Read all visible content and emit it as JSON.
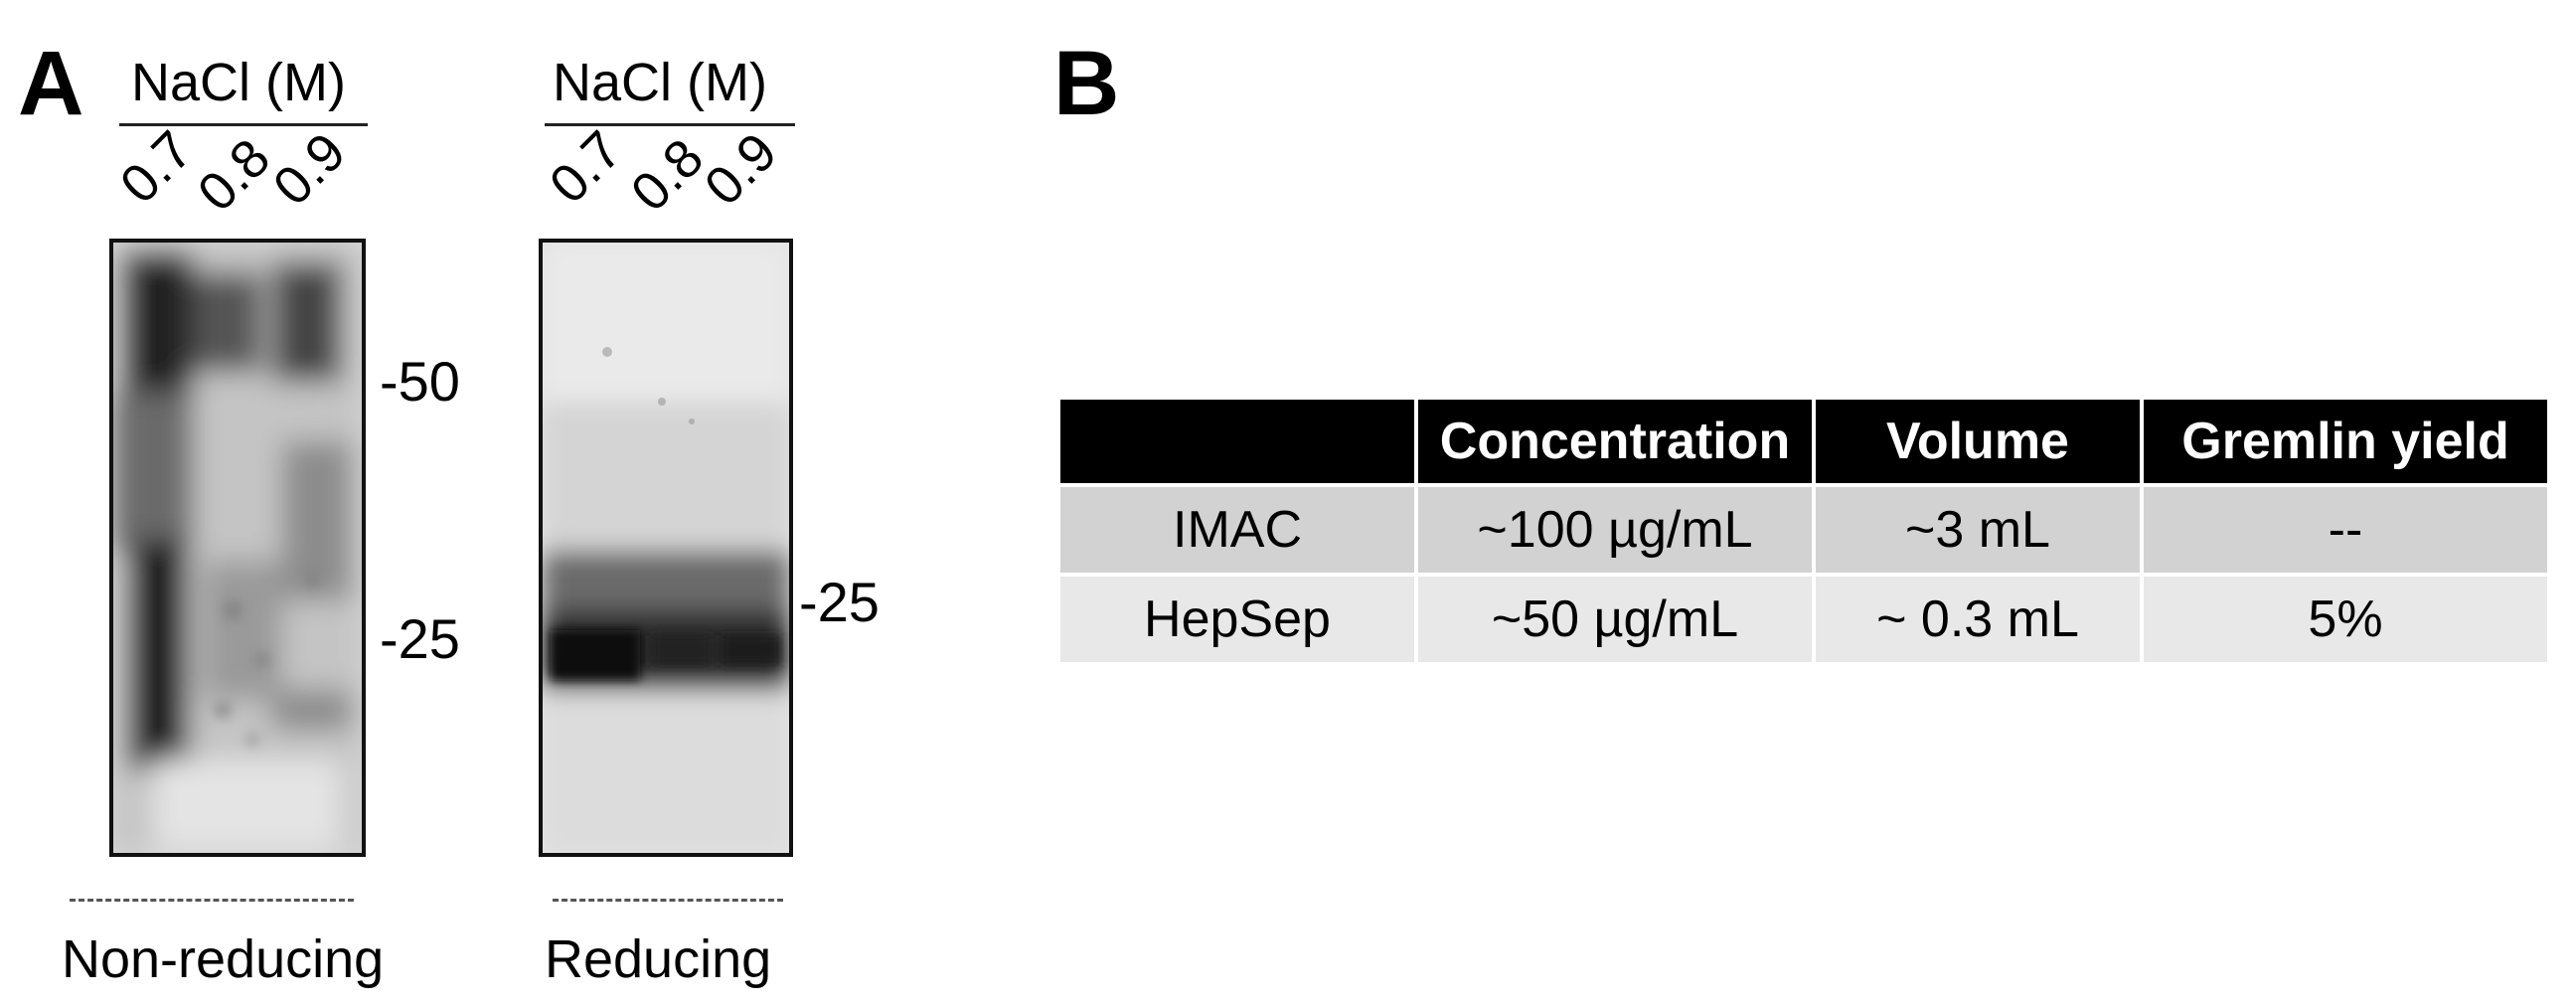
{
  "panel_a": {
    "letter": "A",
    "left_blot": {
      "header": "NaCl (M)",
      "lanes": [
        "0.7",
        "0.8",
        "0.9"
      ],
      "markers": [
        "-50",
        "-25"
      ],
      "condition": "Non-reducing"
    },
    "right_blot": {
      "header": "NaCl (M)",
      "lanes": [
        "0.7",
        "0.8",
        "0.9"
      ],
      "markers": [
        "-25"
      ],
      "condition": "Reducing"
    }
  },
  "panel_b": {
    "letter": "B",
    "table": {
      "columns": [
        "",
        "Concentration",
        "Volume",
        "Gremlin yield"
      ],
      "rows": [
        [
          "IMAC",
          "~100 µg/mL",
          "~3 mL",
          "--"
        ],
        [
          "HepSep",
          "~50 µg/mL",
          "~ 0.3 mL",
          "5%"
        ]
      ]
    }
  }
}
